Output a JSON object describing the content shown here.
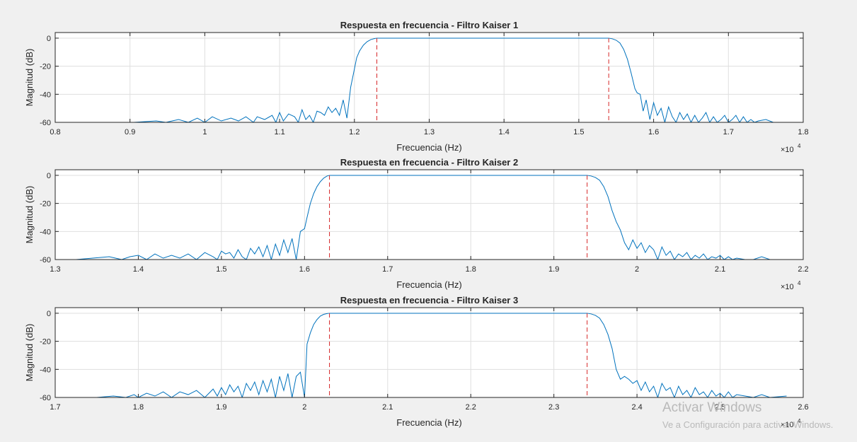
{
  "watermark": {
    "line1": "Activar Windows",
    "line2": "Ve a Configuración para activar Windows."
  },
  "colors": {
    "background": "#f0f0f0",
    "plot_background": "#ffffff",
    "line": "#0072bd",
    "marker_line": "#d62728",
    "grid": "#dfdfdf",
    "axis": "#262626"
  },
  "chart_data": [
    {
      "type": "line",
      "title": "Respuesta en frecuencia - Filtro Kaiser 1",
      "xlabel": "Frecuencia (Hz)",
      "ylabel": "Magnitud (dB)",
      "x_exponent_label": "×10",
      "x_exponent_power": "4",
      "xlim": [
        0.8,
        1.8
      ],
      "ylim": [
        -60,
        4
      ],
      "xticks": [
        0.8,
        0.9,
        1.0,
        1.1,
        1.2,
        1.3,
        1.4,
        1.5,
        1.6,
        1.7,
        1.8
      ],
      "xtick_labels": [
        "0.8",
        "0.9",
        "1",
        "1.1",
        "1.2",
        "1.3",
        "1.4",
        "1.5",
        "1.6",
        "1.7",
        "1.8"
      ],
      "yticks": [
        0,
        -20,
        -40,
        -60
      ],
      "ytick_labels": [
        "0",
        "-20",
        "-40",
        "-60"
      ],
      "grid": true,
      "cutoff_lines": [
        1.23,
        1.54
      ],
      "series": [
        {
          "x": [
            0.905,
            0.935,
            0.948,
            0.965,
            0.978,
            0.99,
            1.0,
            1.01,
            1.022,
            1.035,
            1.045,
            1.055,
            1.065,
            1.07,
            1.08,
            1.09,
            1.095,
            1.1,
            1.105,
            1.112,
            1.12,
            1.125,
            1.13,
            1.135,
            1.14,
            1.145,
            1.15,
            1.155,
            1.16,
            1.165,
            1.17,
            1.175,
            1.18,
            1.185,
            1.19,
            1.195,
            1.2,
            1.203,
            1.207,
            1.212,
            1.217,
            1.222,
            1.227,
            1.23,
            1.3,
            1.4,
            1.5,
            1.54,
            1.545,
            1.55,
            1.555,
            1.56,
            1.565,
            1.57,
            1.575,
            1.578,
            1.582,
            1.586,
            1.59,
            1.595,
            1.6,
            1.605,
            1.61,
            1.615,
            1.62,
            1.625,
            1.63,
            1.635,
            1.64,
            1.645,
            1.65,
            1.655,
            1.66,
            1.665,
            1.67,
            1.675,
            1.68,
            1.685,
            1.69,
            1.695,
            1.7,
            1.705,
            1.71,
            1.715,
            1.72,
            1.725,
            1.73,
            1.735,
            1.74,
            1.75,
            1.76
          ],
          "values": [
            -60,
            -59,
            -60,
            -58,
            -60,
            -57,
            -60,
            -56,
            -59,
            -57,
            -59,
            -56,
            -60,
            -56,
            -58,
            -55,
            -60,
            -53,
            -59,
            -54,
            -56,
            -60,
            -51,
            -58,
            -55,
            -60,
            -52,
            -53,
            -55,
            -49,
            -53,
            -50,
            -55,
            -44,
            -57,
            -35,
            -22,
            -14,
            -9,
            -5,
            -2.5,
            -1,
            -0.3,
            0,
            0,
            0,
            0,
            0,
            -0.5,
            -1.5,
            -3.5,
            -8,
            -15,
            -25,
            -36,
            -39,
            -40,
            -52,
            -44,
            -58,
            -46,
            -55,
            -50,
            -60,
            -49,
            -56,
            -60,
            -53,
            -58,
            -54,
            -60,
            -55,
            -60,
            -57,
            -53,
            -60,
            -56,
            -60,
            -58,
            -55,
            -60,
            -58,
            -55,
            -60,
            -56,
            -60,
            -58,
            -60,
            -59,
            -58,
            -60
          ]
        }
      ]
    },
    {
      "type": "line",
      "title": "Respuesta en frecuencia - Filtro Kaiser 2",
      "xlabel": "Frecuencia (Hz)",
      "ylabel": "Magnitud (dB)",
      "x_exponent_label": "×10",
      "x_exponent_power": "4",
      "xlim": [
        1.3,
        2.2
      ],
      "ylim": [
        -60,
        4
      ],
      "xticks": [
        1.3,
        1.4,
        1.5,
        1.6,
        1.7,
        1.8,
        1.9,
        2.0,
        2.1,
        2.2
      ],
      "xtick_labels": [
        "1.3",
        "1.4",
        "1.5",
        "1.6",
        "1.7",
        "1.8",
        "1.9",
        "2",
        "2.1",
        "2.2"
      ],
      "yticks": [
        0,
        -20,
        -40,
        -60
      ],
      "ytick_labels": [
        "0",
        "-20",
        "-40",
        "-60"
      ],
      "grid": true,
      "cutoff_lines": [
        1.63,
        1.94
      ],
      "series": [
        {
          "x": [
            1.325,
            1.345,
            1.365,
            1.38,
            1.39,
            1.4,
            1.41,
            1.42,
            1.43,
            1.44,
            1.45,
            1.46,
            1.47,
            1.48,
            1.49,
            1.495,
            1.5,
            1.505,
            1.51,
            1.515,
            1.52,
            1.525,
            1.53,
            1.535,
            1.54,
            1.545,
            1.55,
            1.555,
            1.56,
            1.565,
            1.57,
            1.575,
            1.58,
            1.585,
            1.59,
            1.595,
            1.6,
            1.603,
            1.607,
            1.611,
            1.615,
            1.619,
            1.623,
            1.627,
            1.63,
            1.7,
            1.8,
            1.9,
            1.94,
            1.945,
            1.95,
            1.955,
            1.96,
            1.965,
            1.97,
            1.975,
            1.98,
            1.985,
            1.99,
            1.995,
            2.0,
            2.005,
            2.01,
            2.015,
            2.02,
            2.025,
            2.03,
            2.035,
            2.04,
            2.045,
            2.05,
            2.055,
            2.06,
            2.065,
            2.07,
            2.075,
            2.08,
            2.085,
            2.09,
            2.095,
            2.1,
            2.105,
            2.11,
            2.115,
            2.12,
            2.13,
            2.14,
            2.15,
            2.16
          ],
          "values": [
            -60,
            -59,
            -58,
            -60,
            -58,
            -57,
            -60,
            -56,
            -59,
            -57,
            -59,
            -56,
            -60,
            -55,
            -58,
            -60,
            -54,
            -56,
            -55,
            -59,
            -53,
            -58,
            -60,
            -52,
            -56,
            -51,
            -58,
            -50,
            -60,
            -49,
            -57,
            -46,
            -55,
            -45,
            -60,
            -40,
            -38,
            -30,
            -20,
            -13,
            -8,
            -4.5,
            -2,
            -0.5,
            0,
            0,
            0,
            0,
            0,
            -0.5,
            -1.5,
            -3.5,
            -8,
            -15,
            -25,
            -33,
            -39,
            -48,
            -53,
            -46,
            -52,
            -48,
            -55,
            -50,
            -53,
            -60,
            -51,
            -57,
            -54,
            -60,
            -56,
            -58,
            -55,
            -60,
            -57,
            -59,
            -56,
            -60,
            -58,
            -59,
            -57,
            -60,
            -58,
            -60,
            -59,
            -60,
            -60,
            -58,
            -60
          ]
        }
      ]
    },
    {
      "type": "line",
      "title": "Respuesta en frecuencia - Filtro Kaiser 3",
      "xlabel": "Frecuencia (Hz)",
      "ylabel": "Magnitud (dB)",
      "x_exponent_label": "×10",
      "x_exponent_power": "4",
      "xlim": [
        1.7,
        2.6
      ],
      "ylim": [
        -60,
        4
      ],
      "xticks": [
        1.7,
        1.8,
        1.9,
        2.0,
        2.1,
        2.2,
        2.3,
        2.4,
        2.5,
        2.6
      ],
      "xtick_labels": [
        "1.7",
        "1.8",
        "1.9",
        "2",
        "2.1",
        "2.2",
        "2.3",
        "2.4",
        "2.5",
        "2.6"
      ],
      "yticks": [
        0,
        -20,
        -40,
        -60
      ],
      "ytick_labels": [
        "0",
        "-20",
        "-40",
        "-60"
      ],
      "grid": true,
      "cutoff_lines": [
        2.03,
        2.34
      ],
      "series": [
        {
          "x": [
            1.75,
            1.77,
            1.785,
            1.795,
            1.8,
            1.81,
            1.82,
            1.83,
            1.84,
            1.85,
            1.86,
            1.87,
            1.88,
            1.89,
            1.895,
            1.9,
            1.905,
            1.91,
            1.915,
            1.92,
            1.925,
            1.93,
            1.935,
            1.94,
            1.945,
            1.95,
            1.955,
            1.96,
            1.965,
            1.97,
            1.975,
            1.98,
            1.985,
            1.99,
            1.995,
            2.0,
            2.003,
            2.007,
            2.011,
            2.015,
            2.019,
            2.023,
            2.027,
            2.03,
            2.1,
            2.2,
            2.3,
            2.34,
            2.345,
            2.35,
            2.355,
            2.36,
            2.365,
            2.37,
            2.375,
            2.38,
            2.385,
            2.39,
            2.395,
            2.4,
            2.405,
            2.41,
            2.415,
            2.42,
            2.425,
            2.43,
            2.435,
            2.44,
            2.445,
            2.45,
            2.455,
            2.46,
            2.465,
            2.47,
            2.475,
            2.48,
            2.485,
            2.49,
            2.495,
            2.5,
            2.505,
            2.51,
            2.515,
            2.52,
            2.53,
            2.54,
            2.55,
            2.56,
            2.58
          ],
          "values": [
            -60,
            -59,
            -60,
            -58,
            -60,
            -57,
            -59,
            -56,
            -60,
            -56,
            -58,
            -55,
            -60,
            -54,
            -59,
            -53,
            -58,
            -51,
            -56,
            -52,
            -60,
            -50,
            -55,
            -49,
            -58,
            -48,
            -56,
            -47,
            -60,
            -45,
            -55,
            -43,
            -60,
            -45,
            -42,
            -60,
            -22,
            -14,
            -8,
            -4.5,
            -2,
            -0.8,
            -0.2,
            0,
            0,
            0,
            0,
            0,
            -0.5,
            -1.5,
            -3.5,
            -8,
            -15,
            -25,
            -40,
            -47,
            -45,
            -47,
            -50,
            -48,
            -55,
            -49,
            -56,
            -52,
            -60,
            -50,
            -55,
            -53,
            -60,
            -52,
            -58,
            -55,
            -60,
            -53,
            -58,
            -56,
            -60,
            -55,
            -59,
            -57,
            -60,
            -56,
            -60,
            -58,
            -59,
            -60,
            -58,
            -60,
            -59
          ]
        }
      ]
    }
  ]
}
